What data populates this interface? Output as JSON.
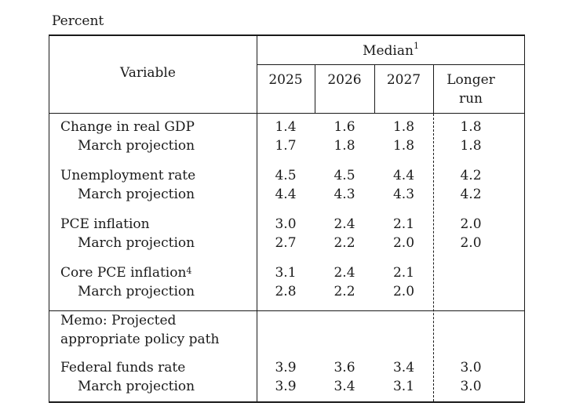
{
  "caption": "Percent",
  "header": {
    "variable": "Variable",
    "median": "Median",
    "median_note": "1",
    "years": [
      "2025",
      "2026",
      "2027"
    ],
    "longer_run_line1": "Longer",
    "longer_run_line2": "run"
  },
  "rows": [
    {
      "label": "Change in real GDP",
      "note": "",
      "values": [
        "1.4",
        "1.6",
        "1.8",
        "1.8"
      ]
    },
    {
      "label": "March projection",
      "note": "",
      "values": [
        "1.7",
        "1.8",
        "1.8",
        "1.8"
      ]
    },
    {
      "label": "Unemployment rate",
      "note": "",
      "values": [
        "4.5",
        "4.5",
        "4.4",
        "4.2"
      ]
    },
    {
      "label": "March projection",
      "note": "",
      "values": [
        "4.4",
        "4.3",
        "4.3",
        "4.2"
      ]
    },
    {
      "label": "PCE inflation",
      "note": "",
      "values": [
        "3.0",
        "2.4",
        "2.1",
        "2.0"
      ]
    },
    {
      "label": "March projection",
      "note": "",
      "values": [
        "2.7",
        "2.2",
        "2.0",
        "2.0"
      ]
    },
    {
      "label": "Core PCE inflation",
      "note": "4",
      "values": [
        "3.1",
        "2.4",
        "2.1",
        ""
      ]
    },
    {
      "label": "March projection",
      "note": "",
      "values": [
        "2.8",
        "2.2",
        "2.0",
        ""
      ]
    }
  ],
  "memo": {
    "line1": "Memo: Projected",
    "line2": "appropriate policy path"
  },
  "memo_rows": [
    {
      "label": "Federal funds rate",
      "values": [
        "3.9",
        "3.6",
        "3.4",
        "3.0"
      ]
    },
    {
      "label": "March projection",
      "values": [
        "3.9",
        "3.4",
        "3.1",
        "3.0"
      ]
    }
  ]
}
